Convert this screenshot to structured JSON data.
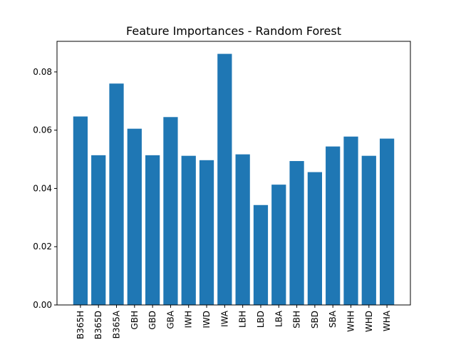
{
  "chart_data": {
    "type": "bar",
    "title": "Feature Importances - Random Forest",
    "xlabel": "",
    "ylabel": "",
    "categories": [
      "B365H",
      "B365D",
      "B365A",
      "GBH",
      "GBD",
      "GBA",
      "IWH",
      "IWD",
      "IWA",
      "LBH",
      "LBD",
      "LBA",
      "SBH",
      "SBD",
      "SBA",
      "WHH",
      "WHD",
      "WHA"
    ],
    "values": [
      0.0647,
      0.0514,
      0.076,
      0.0605,
      0.0514,
      0.0645,
      0.0512,
      0.0497,
      0.0862,
      0.0517,
      0.0343,
      0.0413,
      0.0494,
      0.0456,
      0.0544,
      0.0578,
      0.0512,
      0.0571
    ],
    "ylim": [
      0,
      0.0905
    ],
    "yticks": [
      0.0,
      0.02,
      0.04,
      0.06,
      0.08
    ],
    "ytick_labels": [
      "0.00",
      "0.02",
      "0.04",
      "0.06",
      "0.08"
    ],
    "bar_color": "#1f77b4",
    "grid": false,
    "legend": "none"
  }
}
